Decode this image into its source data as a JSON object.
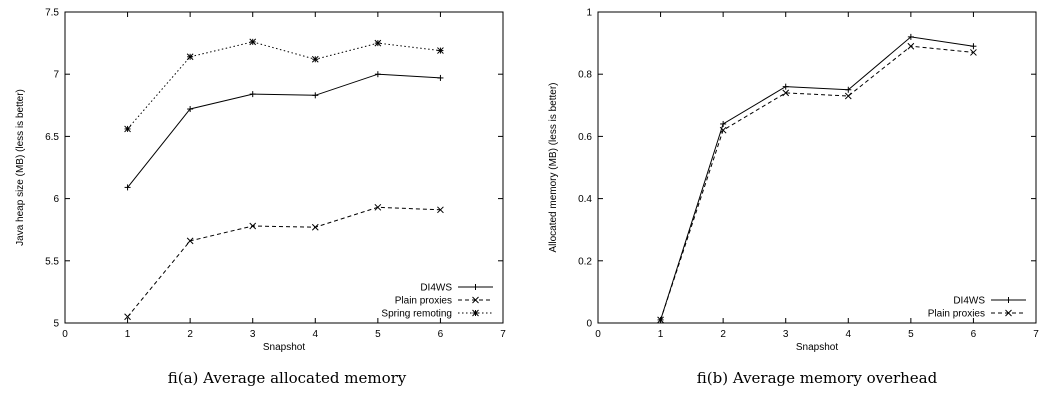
{
  "chart_data": [
    {
      "type": "line",
      "xlabel": "Snapshot",
      "ylabel": "Java heap size (MB) (less is better)",
      "xlim": [
        0,
        7
      ],
      "ylim": [
        5,
        7.5
      ],
      "xticks": [
        "0",
        "1",
        "2",
        "3",
        "4",
        "5",
        "6",
        "7"
      ],
      "yticks": [
        "5",
        "5.5",
        "6",
        "6.5",
        "7",
        "7.5"
      ],
      "x": [
        1,
        2,
        3,
        4,
        5,
        6
      ],
      "legend_position": "bottom-right",
      "grid": false,
      "caption": "ﬁ(a) Average allocated memory",
      "series": [
        {
          "name": "DI4WS",
          "values": [
            6.09,
            6.72,
            6.84,
            6.83,
            7.0,
            6.97
          ],
          "marker": "plus",
          "dash": "solid"
        },
        {
          "name": "Plain proxies",
          "values": [
            5.05,
            5.66,
            5.78,
            5.77,
            5.93,
            5.91
          ],
          "marker": "cross",
          "dash": "dashed"
        },
        {
          "name": "Spring remoting",
          "values": [
            6.56,
            7.14,
            7.26,
            7.12,
            7.25,
            7.19
          ],
          "marker": "star",
          "dash": "dotted"
        }
      ]
    },
    {
      "type": "line",
      "xlabel": "Snapshot",
      "ylabel": "Allocated memory (MB) (less is better)",
      "xlim": [
        0,
        7
      ],
      "ylim": [
        0,
        1
      ],
      "xticks": [
        "0",
        "1",
        "2",
        "3",
        "4",
        "5",
        "6",
        "7"
      ],
      "yticks": [
        "0",
        "0.2",
        "0.4",
        "0.6",
        "0.8",
        "1"
      ],
      "x": [
        1,
        2,
        3,
        4,
        5,
        6
      ],
      "legend_position": "bottom-right",
      "grid": false,
      "caption": "ﬁ(b) Average memory overhead",
      "series": [
        {
          "name": "DI4WS",
          "values": [
            0.01,
            0.64,
            0.76,
            0.75,
            0.92,
            0.89
          ],
          "marker": "plus",
          "dash": "solid"
        },
        {
          "name": "Plain proxies",
          "values": [
            0.01,
            0.62,
            0.74,
            0.73,
            0.89,
            0.87
          ],
          "marker": "cross",
          "dash": "dashed"
        }
      ]
    }
  ]
}
